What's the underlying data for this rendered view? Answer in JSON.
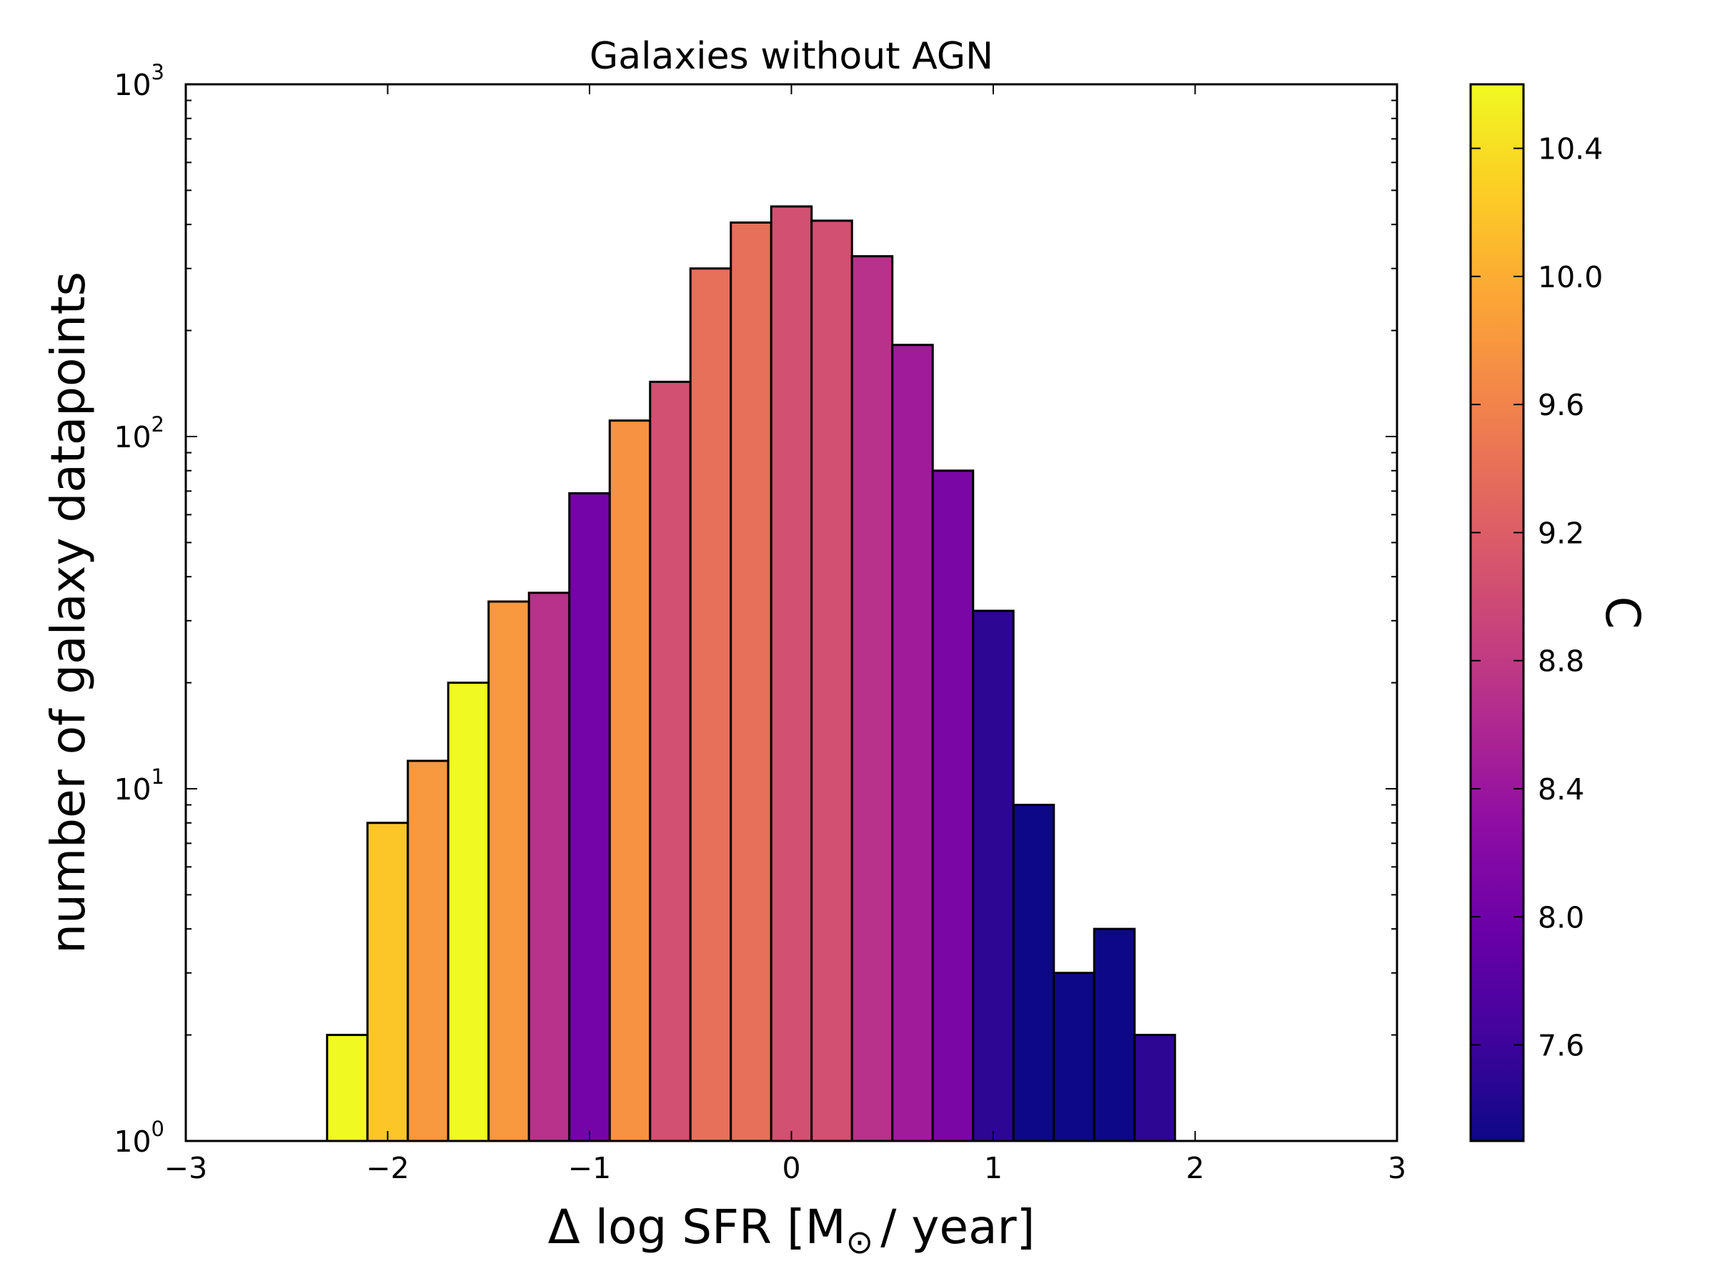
{
  "chart_data": {
    "type": "bar",
    "title": "Galaxies without AGN",
    "xlabel": "Δ log SFR [M",
    "xlabel_sub": "⊙",
    "xlabel_tail": "/ year]",
    "ylabel": "number of galaxy datapoints",
    "xlim": [
      -3,
      3
    ],
    "ylim": [
      1,
      1000
    ],
    "yscale": "log",
    "x_ticks": [
      -3,
      -2,
      -1,
      0,
      1,
      2,
      3
    ],
    "x_tick_labels": [
      "−3",
      "−2",
      "−1",
      "0",
      "1",
      "2",
      "3"
    ],
    "y_ticks": [
      1,
      10,
      100,
      1000
    ],
    "y_tick_base": "10",
    "y_tick_exponents": [
      "0",
      "1",
      "2",
      "3"
    ],
    "bin_width": 0.2,
    "bins": [
      {
        "x0": -2.3,
        "count": 2,
        "c": 10.6
      },
      {
        "x0": -2.1,
        "count": 8,
        "c": 10.2
      },
      {
        "x0": -1.9,
        "count": 12,
        "c": 9.8
      },
      {
        "x0": -1.7,
        "count": 20,
        "c": 10.6
      },
      {
        "x0": -1.5,
        "count": 34,
        "c": 9.8
      },
      {
        "x0": -1.3,
        "count": 36,
        "c": 8.7
      },
      {
        "x0": -1.1,
        "count": 69,
        "c": 8.05
      },
      {
        "x0": -0.9,
        "count": 111,
        "c": 9.75
      },
      {
        "x0": -0.7,
        "count": 143,
        "c": 9.05
      },
      {
        "x0": -0.5,
        "count": 300,
        "c": 9.4
      },
      {
        "x0": -0.3,
        "count": 405,
        "c": 9.4
      },
      {
        "x0": -0.1,
        "count": 450,
        "c": 9.05
      },
      {
        "x0": 0.1,
        "count": 410,
        "c": 9.05
      },
      {
        "x0": 0.3,
        "count": 325,
        "c": 8.7
      },
      {
        "x0": 0.5,
        "count": 182,
        "c": 8.45
      },
      {
        "x0": 0.7,
        "count": 80,
        "c": 8.1
      },
      {
        "x0": 0.9,
        "count": 32,
        "c": 7.5
      },
      {
        "x0": 1.1,
        "count": 9,
        "c": 7.3
      },
      {
        "x0": 1.3,
        "count": 3,
        "c": 7.3
      },
      {
        "x0": 1.5,
        "count": 4,
        "c": 7.3
      },
      {
        "x0": 1.7,
        "count": 2,
        "c": 7.5
      }
    ],
    "colorbar": {
      "label": "C",
      "range": [
        7.3,
        10.6
      ],
      "ticks": [
        7.6,
        8.0,
        8.4,
        8.8,
        9.2,
        9.6,
        10.0,
        10.4
      ],
      "tick_labels": [
        "7.6",
        "8.0",
        "8.4",
        "8.8",
        "9.2",
        "9.6",
        "10.0",
        "10.4"
      ],
      "colormap": "plasma"
    },
    "grid": false,
    "legend": "none"
  }
}
